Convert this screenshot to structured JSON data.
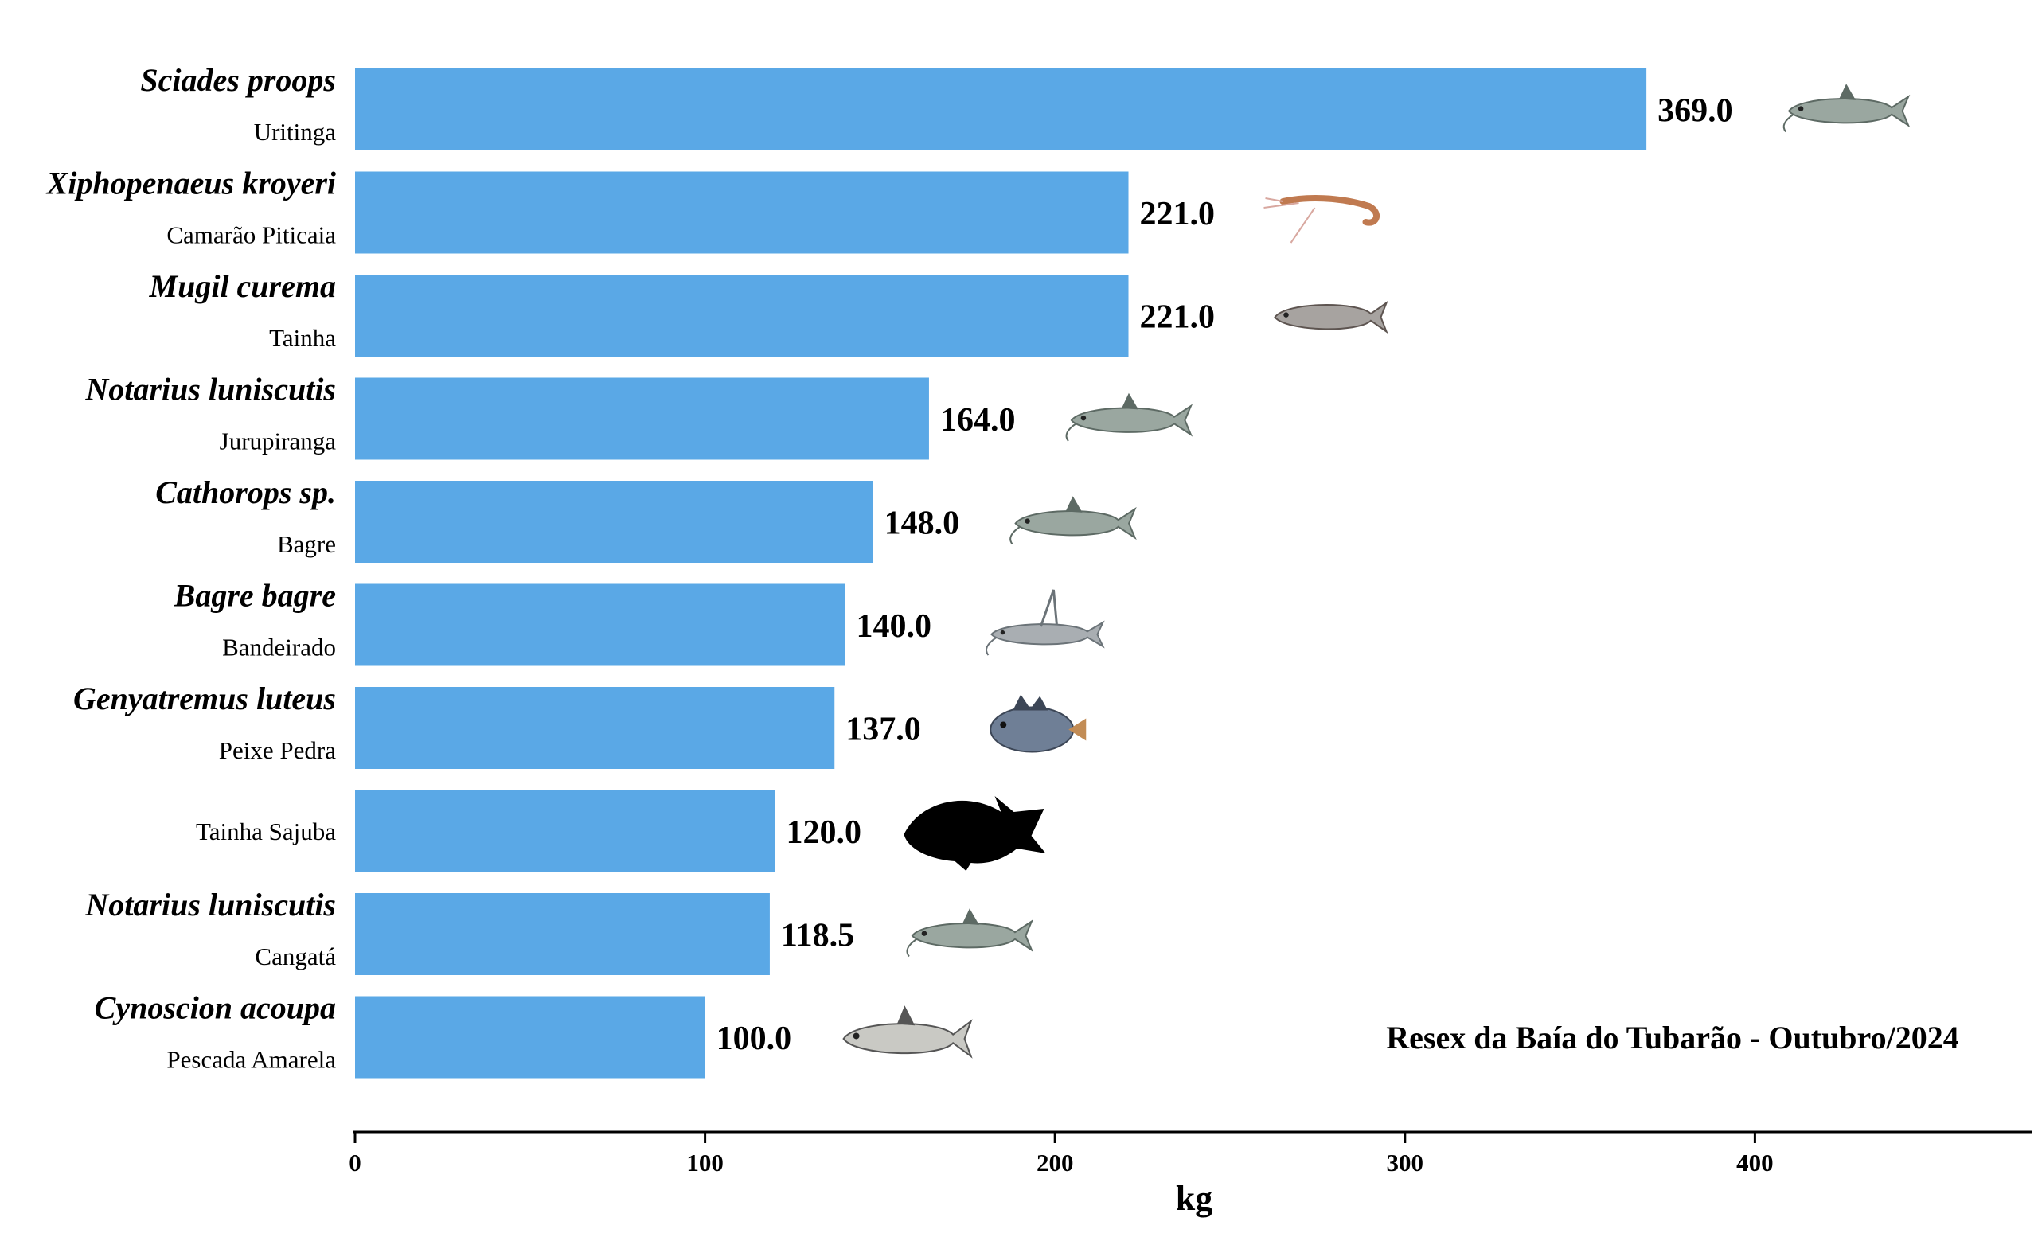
{
  "chart_data": {
    "type": "bar",
    "orientation": "horizontal",
    "categories": [
      {
        "scientific": "Sciades proops",
        "common": "Uritinga",
        "icon": "catfish-icon"
      },
      {
        "scientific": "Xiphopenaeus kroyeri",
        "common": "Camarão Piticaia",
        "icon": "shrimp-icon"
      },
      {
        "scientific": "Mugil curema",
        "common": "Tainha",
        "icon": "mullet-icon"
      },
      {
        "scientific": "Notarius luniscutis",
        "common": "Jurupiranga",
        "icon": "catfish-icon"
      },
      {
        "scientific": "Cathorops sp.",
        "common": "Bagre",
        "icon": "catfish-icon"
      },
      {
        "scientific": "Bagre bagre",
        "common": "Bandeirado",
        "icon": "flag-catfish-icon"
      },
      {
        "scientific": "Genyatremus luteus",
        "common": "Peixe Pedra",
        "icon": "grunt-fish-icon"
      },
      {
        "scientific": "",
        "common": "Tainha Sajuba",
        "icon": "fish-silhouette-icon"
      },
      {
        "scientific": "Notarius luniscutis",
        "common": "Cangatá",
        "icon": "catfish-icon"
      },
      {
        "scientific": "Cynoscion acoupa",
        "common": "Pescada Amarela",
        "icon": "weakfish-icon"
      }
    ],
    "values": [
      369.0,
      221.0,
      221.0,
      164.0,
      148.0,
      140.0,
      137.0,
      120.0,
      118.5,
      100.0
    ],
    "value_labels": [
      "369.0",
      "221.0",
      "221.0",
      "164.0",
      "148.0",
      "140.0",
      "137.0",
      "120.0",
      "118.5",
      "100.0"
    ],
    "xlabel": "kg",
    "xlim": [
      0,
      480
    ],
    "xticks": [
      0,
      100,
      200,
      300,
      400
    ],
    "annotation": "Resex da Baía do Tubarão - Outubro/2024",
    "bar_color": "#5aa8e6",
    "grid": false
  }
}
